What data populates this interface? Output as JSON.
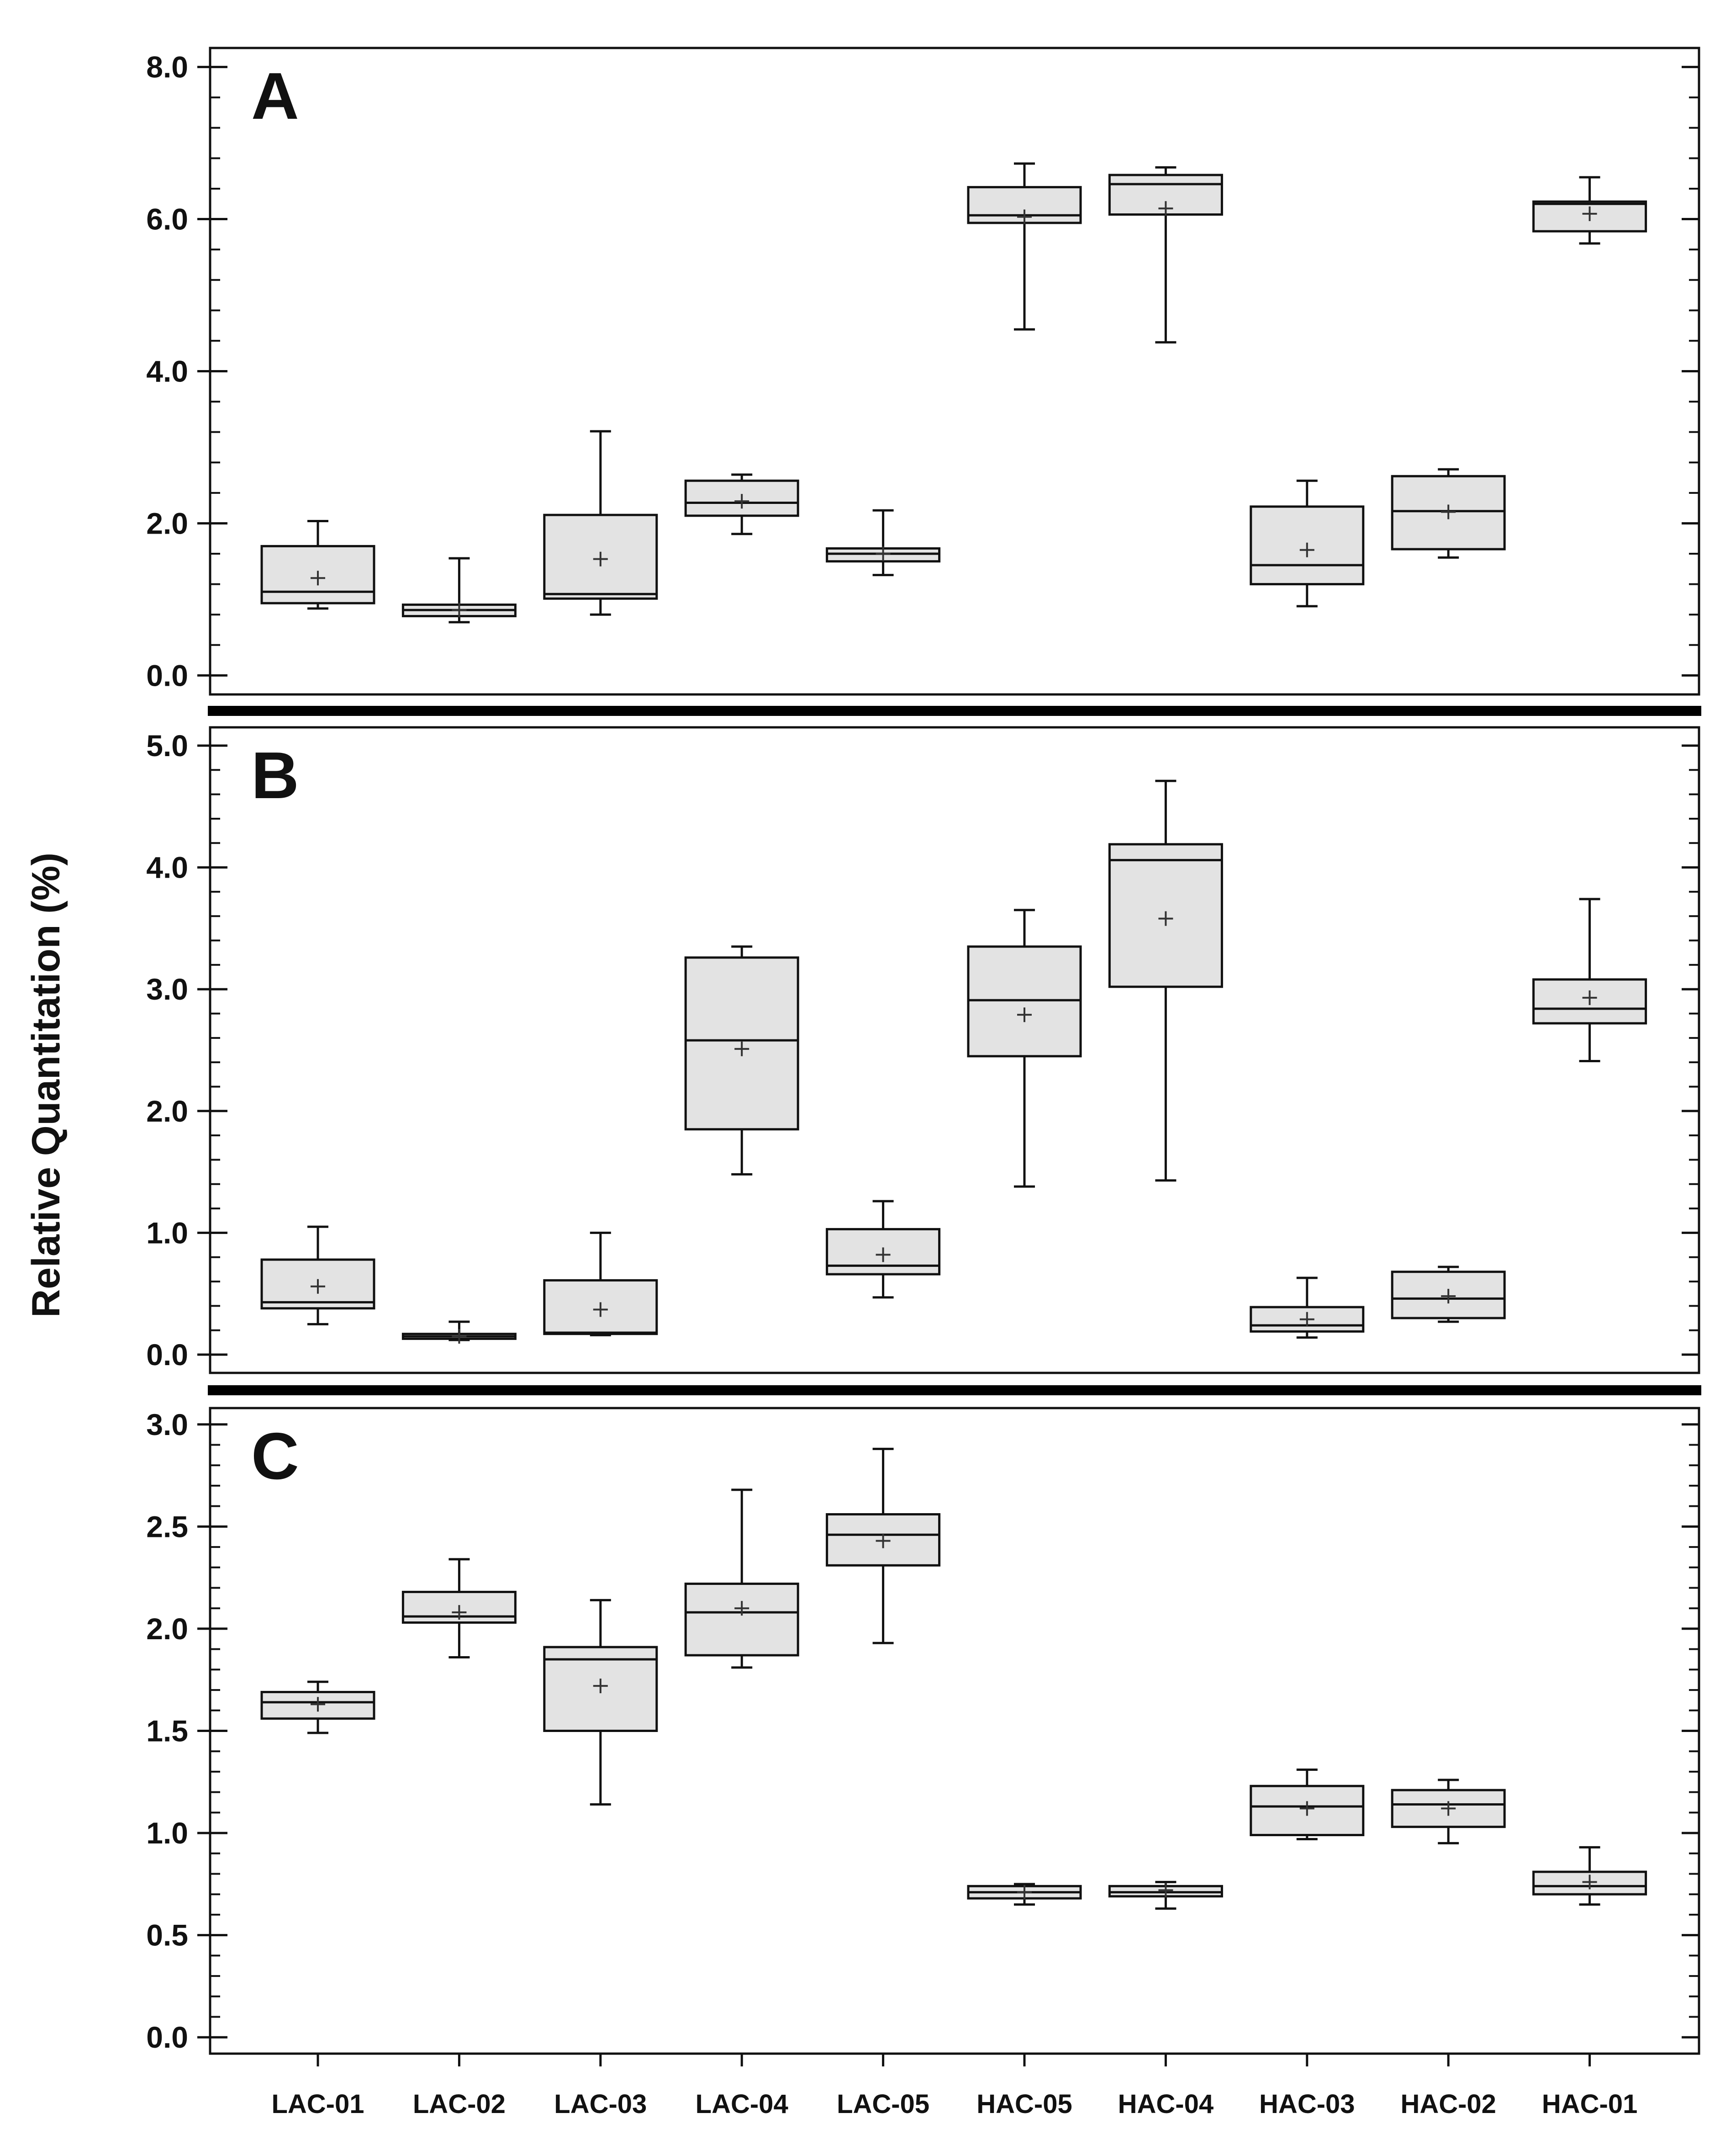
{
  "chart_data": {
    "type": "boxplot",
    "ylabel": "Relative Quantitation (%)",
    "categories": [
      "LAC-01",
      "LAC-02",
      "LAC-03",
      "LAC-04",
      "LAC-05",
      "HAC-05",
      "HAC-04",
      "HAC-03",
      "HAC-02",
      "HAC-01"
    ],
    "colors": {
      "box_fill": "#e3e3e3",
      "stroke": "#111111",
      "separator": "#000000"
    },
    "panels": [
      {
        "label": "A",
        "ylim": [
          -0.25,
          8.25
        ],
        "yticks": [
          0.0,
          2.0,
          4.0,
          6.0,
          8.0
        ],
        "ytick_labels": [
          "0.0",
          "2.0",
          "4.0",
          "6.0",
          "8.0"
        ],
        "minor_step": 0.4,
        "boxes": [
          {
            "whisker_low": 0.88,
            "q1": 0.95,
            "median": 1.1,
            "q3": 1.7,
            "whisker_high": 2.03,
            "mean": 1.28
          },
          {
            "whisker_low": 0.7,
            "q1": 0.78,
            "median": 0.86,
            "q3": 0.93,
            "whisker_high": 1.54,
            "mean": 0.86
          },
          {
            "whisker_low": 0.8,
            "q1": 1.01,
            "median": 1.07,
            "q3": 2.11,
            "whisker_high": 3.21,
            "mean": 1.53
          },
          {
            "whisker_low": 1.86,
            "q1": 2.1,
            "median": 2.27,
            "q3": 2.56,
            "whisker_high": 2.64,
            "mean": 2.29
          },
          {
            "whisker_low": 1.32,
            "q1": 1.5,
            "median": 1.6,
            "q3": 1.67,
            "whisker_high": 2.17,
            "mean": 1.6
          },
          {
            "whisker_low": 4.55,
            "q1": 5.95,
            "median": 6.05,
            "q3": 6.42,
            "whisker_high": 6.73,
            "mean": 6.03
          },
          {
            "whisker_low": 4.38,
            "q1": 6.06,
            "median": 6.46,
            "q3": 6.58,
            "whisker_high": 6.68,
            "mean": 6.14
          },
          {
            "whisker_low": 0.91,
            "q1": 1.2,
            "median": 1.45,
            "q3": 2.22,
            "whisker_high": 2.56,
            "mean": 1.65
          },
          {
            "whisker_low": 1.55,
            "q1": 1.66,
            "median": 2.16,
            "q3": 2.62,
            "whisker_high": 2.71,
            "mean": 2.15
          },
          {
            "whisker_low": 5.68,
            "q1": 5.84,
            "median": 6.2,
            "q3": 6.23,
            "whisker_high": 6.55,
            "mean": 6.07
          }
        ]
      },
      {
        "label": "B",
        "ylim": [
          -0.15,
          5.15
        ],
        "yticks": [
          0.0,
          1.0,
          2.0,
          3.0,
          4.0,
          5.0
        ],
        "ytick_labels": [
          "0.0",
          "1.0",
          "2.0",
          "3.0",
          "4.0",
          "5.0"
        ],
        "minor_step": 0.2,
        "boxes": [
          {
            "whisker_low": 0.25,
            "q1": 0.38,
            "median": 0.43,
            "q3": 0.78,
            "whisker_high": 1.05,
            "mean": 0.56
          },
          {
            "whisker_low": 0.12,
            "q1": 0.13,
            "median": 0.15,
            "q3": 0.17,
            "whisker_high": 0.27,
            "mean": 0.15
          },
          {
            "whisker_low": 0.16,
            "q1": 0.17,
            "median": 0.18,
            "q3": 0.61,
            "whisker_high": 1.0,
            "mean": 0.37
          },
          {
            "whisker_low": 1.48,
            "q1": 1.85,
            "median": 2.58,
            "q3": 3.26,
            "whisker_high": 3.35,
            "mean": 2.51
          },
          {
            "whisker_low": 0.47,
            "q1": 0.66,
            "median": 0.73,
            "q3": 1.03,
            "whisker_high": 1.26,
            "mean": 0.82
          },
          {
            "whisker_low": 1.38,
            "q1": 2.45,
            "median": 2.91,
            "q3": 3.35,
            "whisker_high": 3.65,
            "mean": 2.79
          },
          {
            "whisker_low": 1.43,
            "q1": 3.02,
            "median": 4.06,
            "q3": 4.19,
            "whisker_high": 4.71,
            "mean": 3.58
          },
          {
            "whisker_low": 0.14,
            "q1": 0.19,
            "median": 0.24,
            "q3": 0.39,
            "whisker_high": 0.63,
            "mean": 0.29
          },
          {
            "whisker_low": 0.27,
            "q1": 0.3,
            "median": 0.46,
            "q3": 0.68,
            "whisker_high": 0.72,
            "mean": 0.48
          },
          {
            "whisker_low": 2.41,
            "q1": 2.72,
            "median": 2.84,
            "q3": 3.08,
            "whisker_high": 3.74,
            "mean": 2.93
          }
        ]
      },
      {
        "label": "C",
        "ylim": [
          -0.08,
          3.08
        ],
        "yticks": [
          0.0,
          0.5,
          1.0,
          1.5,
          2.0,
          2.5,
          3.0
        ],
        "ytick_labels": [
          "0.0",
          "0.5",
          "1.0",
          "1.5",
          "2.0",
          "2.5",
          "3.0"
        ],
        "minor_step": 0.1,
        "boxes": [
          {
            "whisker_low": 1.49,
            "q1": 1.56,
            "median": 1.64,
            "q3": 1.69,
            "whisker_high": 1.74,
            "mean": 1.63
          },
          {
            "whisker_low": 1.86,
            "q1": 2.03,
            "median": 2.06,
            "q3": 2.18,
            "whisker_high": 2.34,
            "mean": 2.08
          },
          {
            "whisker_low": 1.14,
            "q1": 1.5,
            "median": 1.85,
            "q3": 1.91,
            "whisker_high": 2.14,
            "mean": 1.72
          },
          {
            "whisker_low": 1.81,
            "q1": 1.87,
            "median": 2.08,
            "q3": 2.22,
            "whisker_high": 2.68,
            "mean": 2.1
          },
          {
            "whisker_low": 1.93,
            "q1": 2.31,
            "median": 2.46,
            "q3": 2.56,
            "whisker_high": 2.88,
            "mean": 2.43
          },
          {
            "whisker_low": 0.65,
            "q1": 0.68,
            "median": 0.71,
            "q3": 0.74,
            "whisker_high": 0.75,
            "mean": 0.71
          },
          {
            "whisker_low": 0.63,
            "q1": 0.69,
            "median": 0.71,
            "q3": 0.74,
            "whisker_high": 0.76,
            "mean": 0.72
          },
          {
            "whisker_low": 0.97,
            "q1": 0.99,
            "median": 1.13,
            "q3": 1.23,
            "whisker_high": 1.31,
            "mean": 1.12
          },
          {
            "whisker_low": 0.95,
            "q1": 1.03,
            "median": 1.14,
            "q3": 1.21,
            "whisker_high": 1.26,
            "mean": 1.12
          },
          {
            "whisker_low": 0.65,
            "q1": 0.7,
            "median": 0.74,
            "q3": 0.81,
            "whisker_high": 0.93,
            "mean": 0.76
          }
        ]
      }
    ]
  }
}
